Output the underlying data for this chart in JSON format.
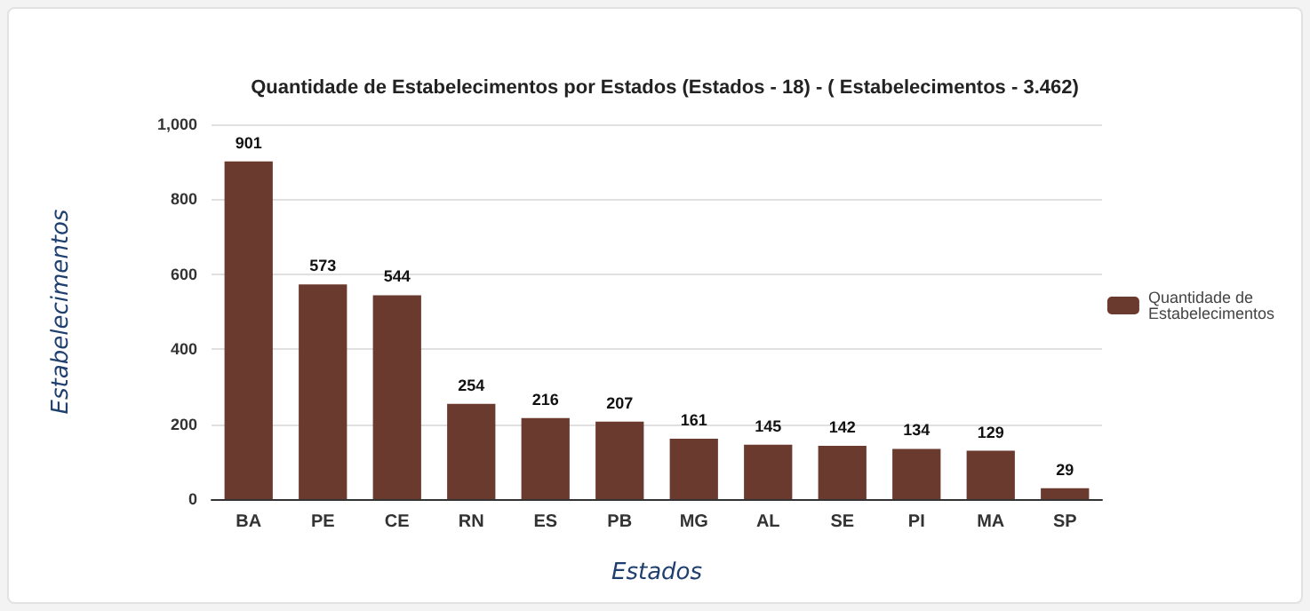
{
  "chart_data": {
    "type": "bar",
    "title": "Quantidade de Estabelecimentos por Estados (Estados - 18) - ( Estabelecimentos - 3.462)",
    "xlabel": "Estados",
    "ylabel": "Estabelecimentos",
    "categories": [
      "BA",
      "PE",
      "CE",
      "RN",
      "ES",
      "PB",
      "MG",
      "AL",
      "SE",
      "PI",
      "MA",
      "SP"
    ],
    "series": [
      {
        "name": "Quantidade de Estabelecimentos",
        "color": "#6b3a2e",
        "values": [
          901,
          573,
          544,
          254,
          216,
          207,
          161,
          145,
          142,
          134,
          129,
          29
        ]
      }
    ],
    "ylim": [
      0,
      1000
    ],
    "yticks": [
      0,
      200,
      400,
      600,
      800,
      {
        "value": 1000,
        "label": "1,000"
      }
    ],
    "grid": "y",
    "legend": "right",
    "data_labels": true
  }
}
